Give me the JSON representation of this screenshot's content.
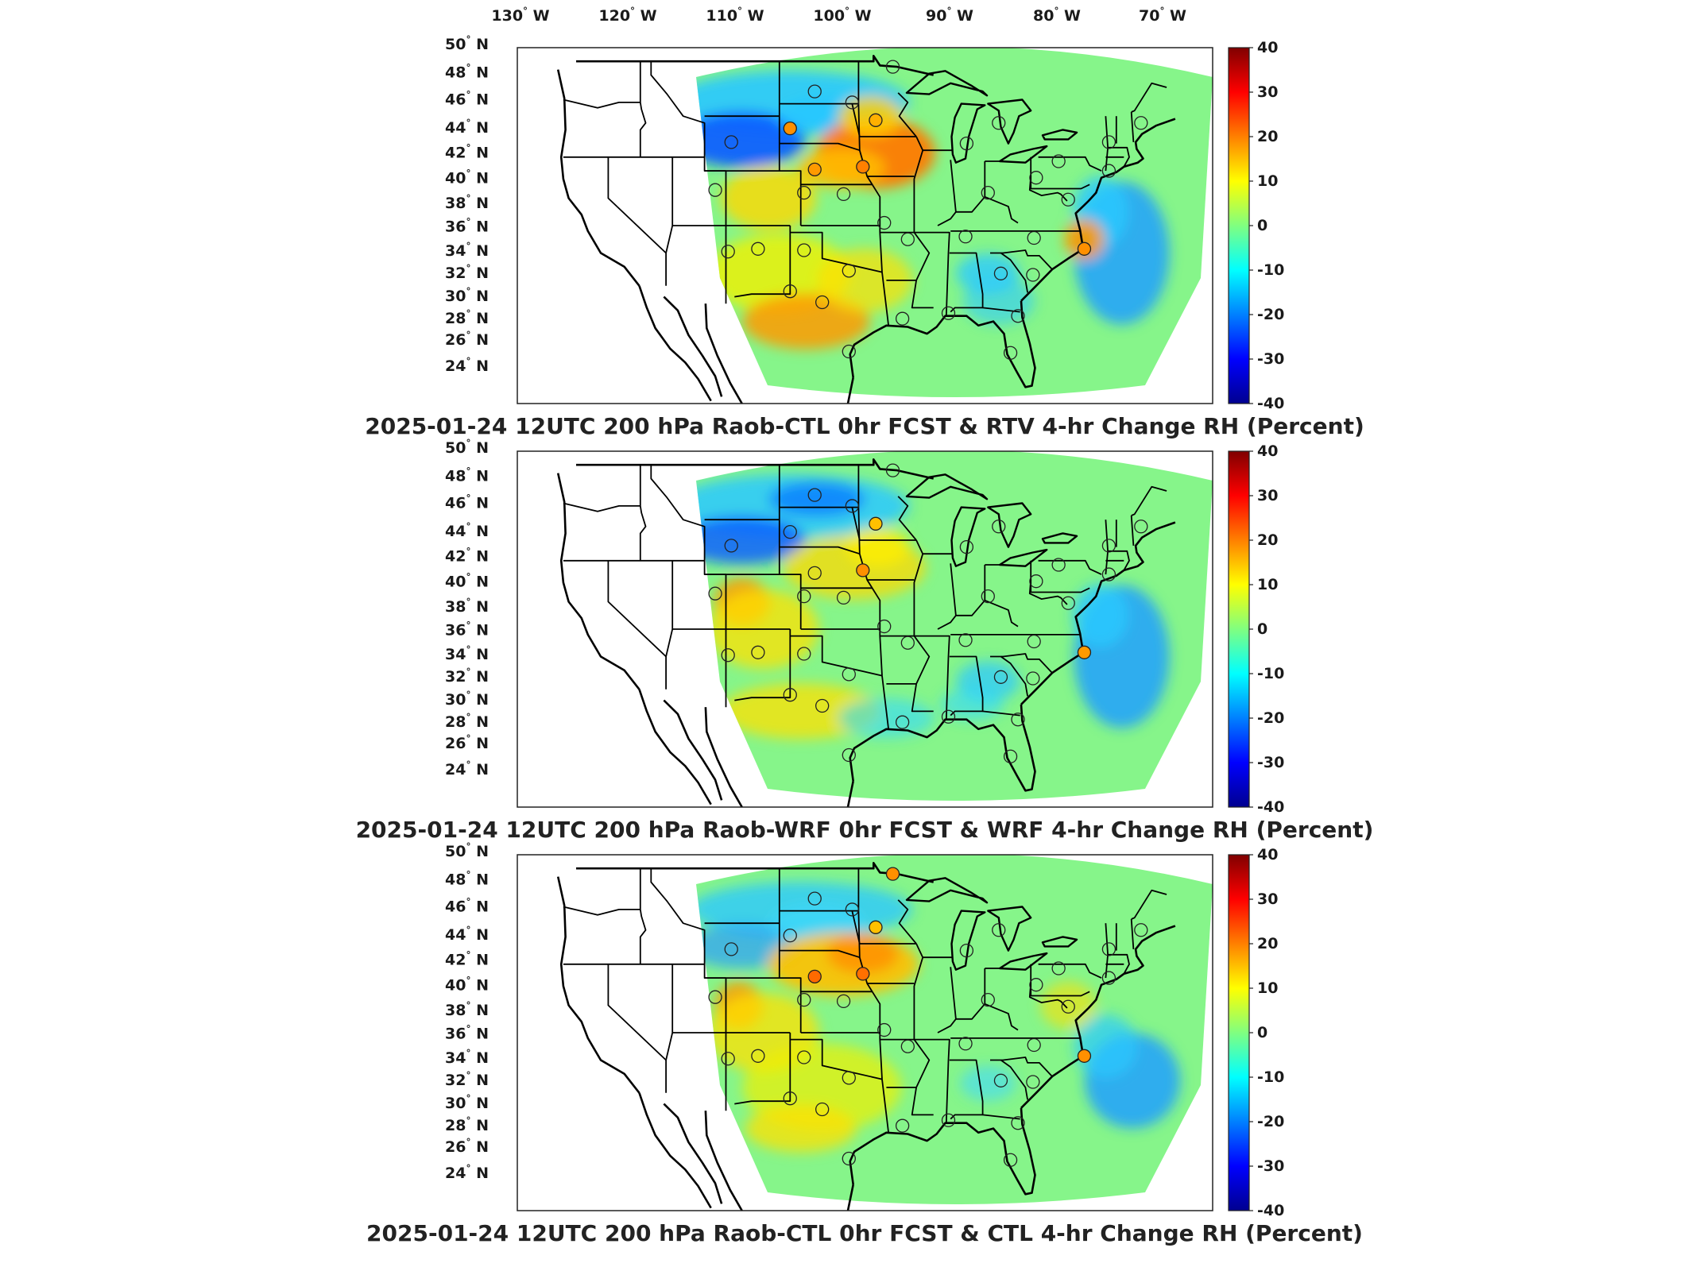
{
  "figure": {
    "top_lon_labels": [
      "130",
      "120",
      "110",
      "100",
      "90",
      "80",
      "70"
    ],
    "lon_hemisphere": "W",
    "lat_labels": [
      "50",
      "48",
      "46",
      "44",
      "42",
      "40",
      "38",
      "36",
      "34",
      "32",
      "30",
      "28",
      "26",
      "24"
    ],
    "lat_hemisphere": "N",
    "degree_symbol": "°",
    "colorbar": {
      "ticks": [
        "40",
        "30",
        "20",
        "10",
        "0",
        "-10",
        "-20",
        "-30",
        "-40"
      ],
      "range": [
        -40,
        40
      ],
      "colormap": "jet",
      "colors": [
        "#00008f",
        "#0000ff",
        "#0080ff",
        "#00ffff",
        "#80ff80",
        "#ffff00",
        "#ff8000",
        "#ff0000",
        "#800000"
      ]
    }
  },
  "panels": [
    {
      "title": "2025-01-24 12UTC 200 hPa Raob-CTL 0hr FCST & RTV 4-hr Change RH (Percent)",
      "scheme": "rtv"
    },
    {
      "title": "2025-01-24 12UTC 200 hPa Raob-WRF 0hr FCST & WRF 4-hr Change RH (Percent)",
      "scheme": "wrf"
    },
    {
      "title": "2025-01-24 12UTC 200 hPa Raob-CTL 0hr FCST & CTL 4-hr Change RH (Percent)",
      "scheme": "ctl"
    }
  ]
}
